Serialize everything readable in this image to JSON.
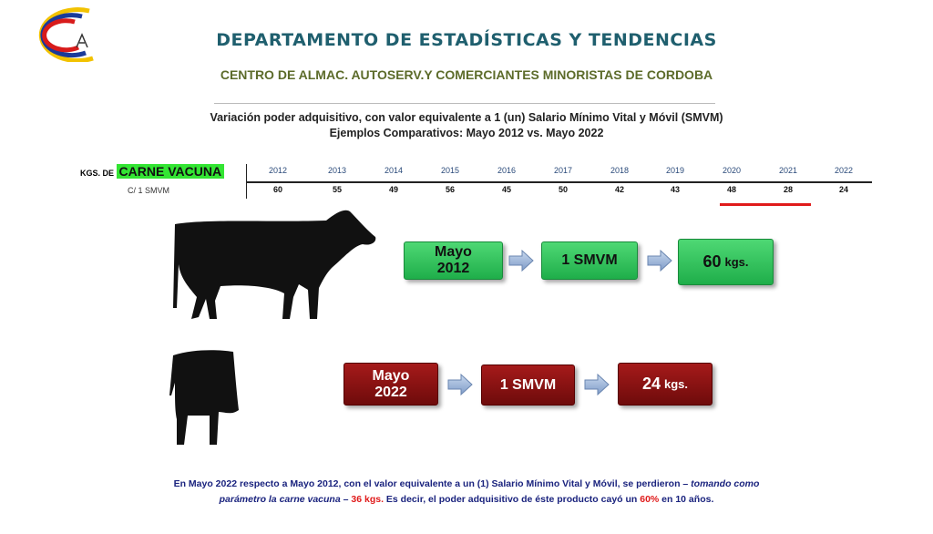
{
  "header": {
    "title": "DEPARTAMENTO DE ESTADÍSTICAS Y TENDENCIAS",
    "subtitle": "CENTRO DE ALMAC. AUTOSERV.Y COMERCIANTES MINORISTAS DE CORDOBA"
  },
  "heading": {
    "line1": "Variación poder adquisitivo, con valor equivalente a 1 (un) Salario Mínimo Vital y Móvil (SMVM)",
    "line2": "Ejemplos Comparativos: Mayo 2012 vs. Mayo 2022"
  },
  "table": {
    "label_prefix": "KGS. DE",
    "label_product": "CARNE VACUNA",
    "label_unit": "C/ 1 SMVM",
    "years": [
      2012,
      2013,
      2014,
      2015,
      2016,
      2017,
      2018,
      2019,
      2020,
      2021,
      2022
    ],
    "values": [
      60,
      55,
      49,
      56,
      45,
      50,
      42,
      43,
      48,
      28,
      24
    ]
  },
  "flows": [
    {
      "period": "Mayo 2012",
      "salary": "1 SMVM",
      "amount": "60",
      "unit": "kgs."
    },
    {
      "period": "Mayo 2022",
      "salary": "1 SMVM",
      "amount": "24",
      "unit": "kgs."
    }
  ],
  "footer": {
    "segments": [
      "En Mayo 2022 respecto a Mayo 2012, con el valor equivalente a un (1) Salario Mínimo Vital y Móvil, se perdieron – ",
      "tomando como parámetro la carne vacuna",
      " – ",
      "36 kgs.",
      "  Es decir, el poder adquisitivo de éste producto cayó un ",
      "60%",
      " en 10 años."
    ]
  }
}
